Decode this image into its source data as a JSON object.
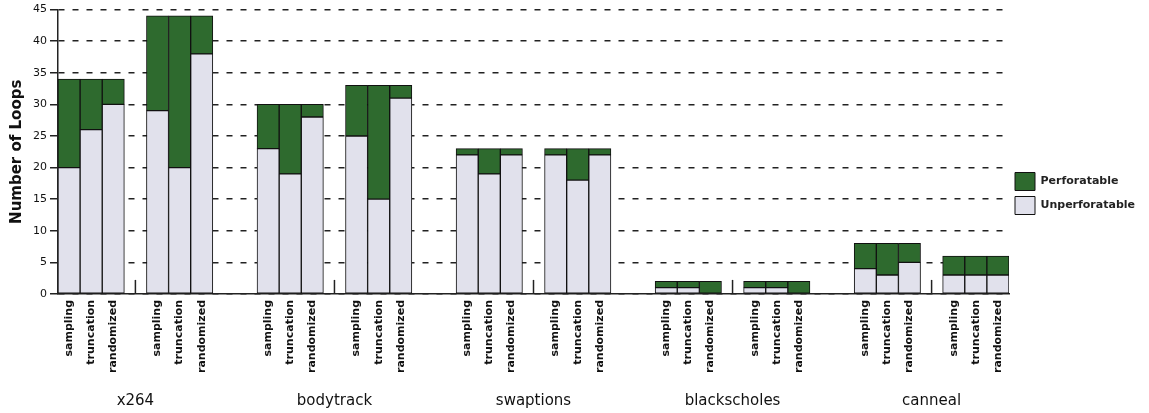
{
  "chart_data": {
    "type": "bar",
    "stacked": true,
    "ylabel": "Number of Loops",
    "categories": [
      "sampling",
      "truncation",
      "randomized",
      null,
      "sampling",
      "truncation",
      "randomized",
      null,
      null,
      "sampling",
      "truncation",
      "randomized",
      null,
      "sampling",
      "truncation",
      "randomized",
      null,
      null,
      "sampling",
      "truncation",
      "randomized",
      null,
      "sampling",
      "truncation",
      "randomized",
      null,
      null,
      "sampling",
      "truncation",
      "randomized",
      null,
      "sampling",
      "truncation",
      "randomized",
      null,
      null,
      "sampling",
      "truncation",
      "randomized",
      null,
      "sampling",
      "truncation",
      "randomized"
    ],
    "series": [
      {
        "name": "Unperforatable",
        "color": "#e1e1ec",
        "values": [
          20,
          26,
          30,
          null,
          29,
          20,
          38,
          null,
          null,
          23,
          19,
          28,
          null,
          25,
          15,
          31,
          null,
          null,
          22,
          19,
          22,
          null,
          22,
          18,
          22,
          null,
          null,
          1,
          1,
          0,
          null,
          1,
          1,
          0,
          null,
          null,
          4,
          3,
          5,
          null,
          3,
          3,
          3
        ]
      },
      {
        "name": "Perforatable",
        "color": "#2e6a2e",
        "values": [
          14,
          8,
          4,
          null,
          15,
          24,
          6,
          null,
          null,
          7,
          11,
          2,
          null,
          8,
          18,
          2,
          null,
          null,
          1,
          4,
          1,
          null,
          1,
          5,
          1,
          null,
          null,
          1,
          1,
          2,
          null,
          1,
          1,
          2,
          null,
          null,
          4,
          5,
          3,
          null,
          3,
          3,
          3
        ]
      }
    ],
    "annotations": [
      "x264",
      "bodytrack",
      "swaptions",
      "blackscholes",
      "canneal"
    ],
    "ylim": [
      0,
      45
    ],
    "yticks": [
      0,
      5,
      10,
      15,
      20,
      25,
      30,
      35,
      40,
      45
    ],
    "grid": "y",
    "legend": "right"
  }
}
